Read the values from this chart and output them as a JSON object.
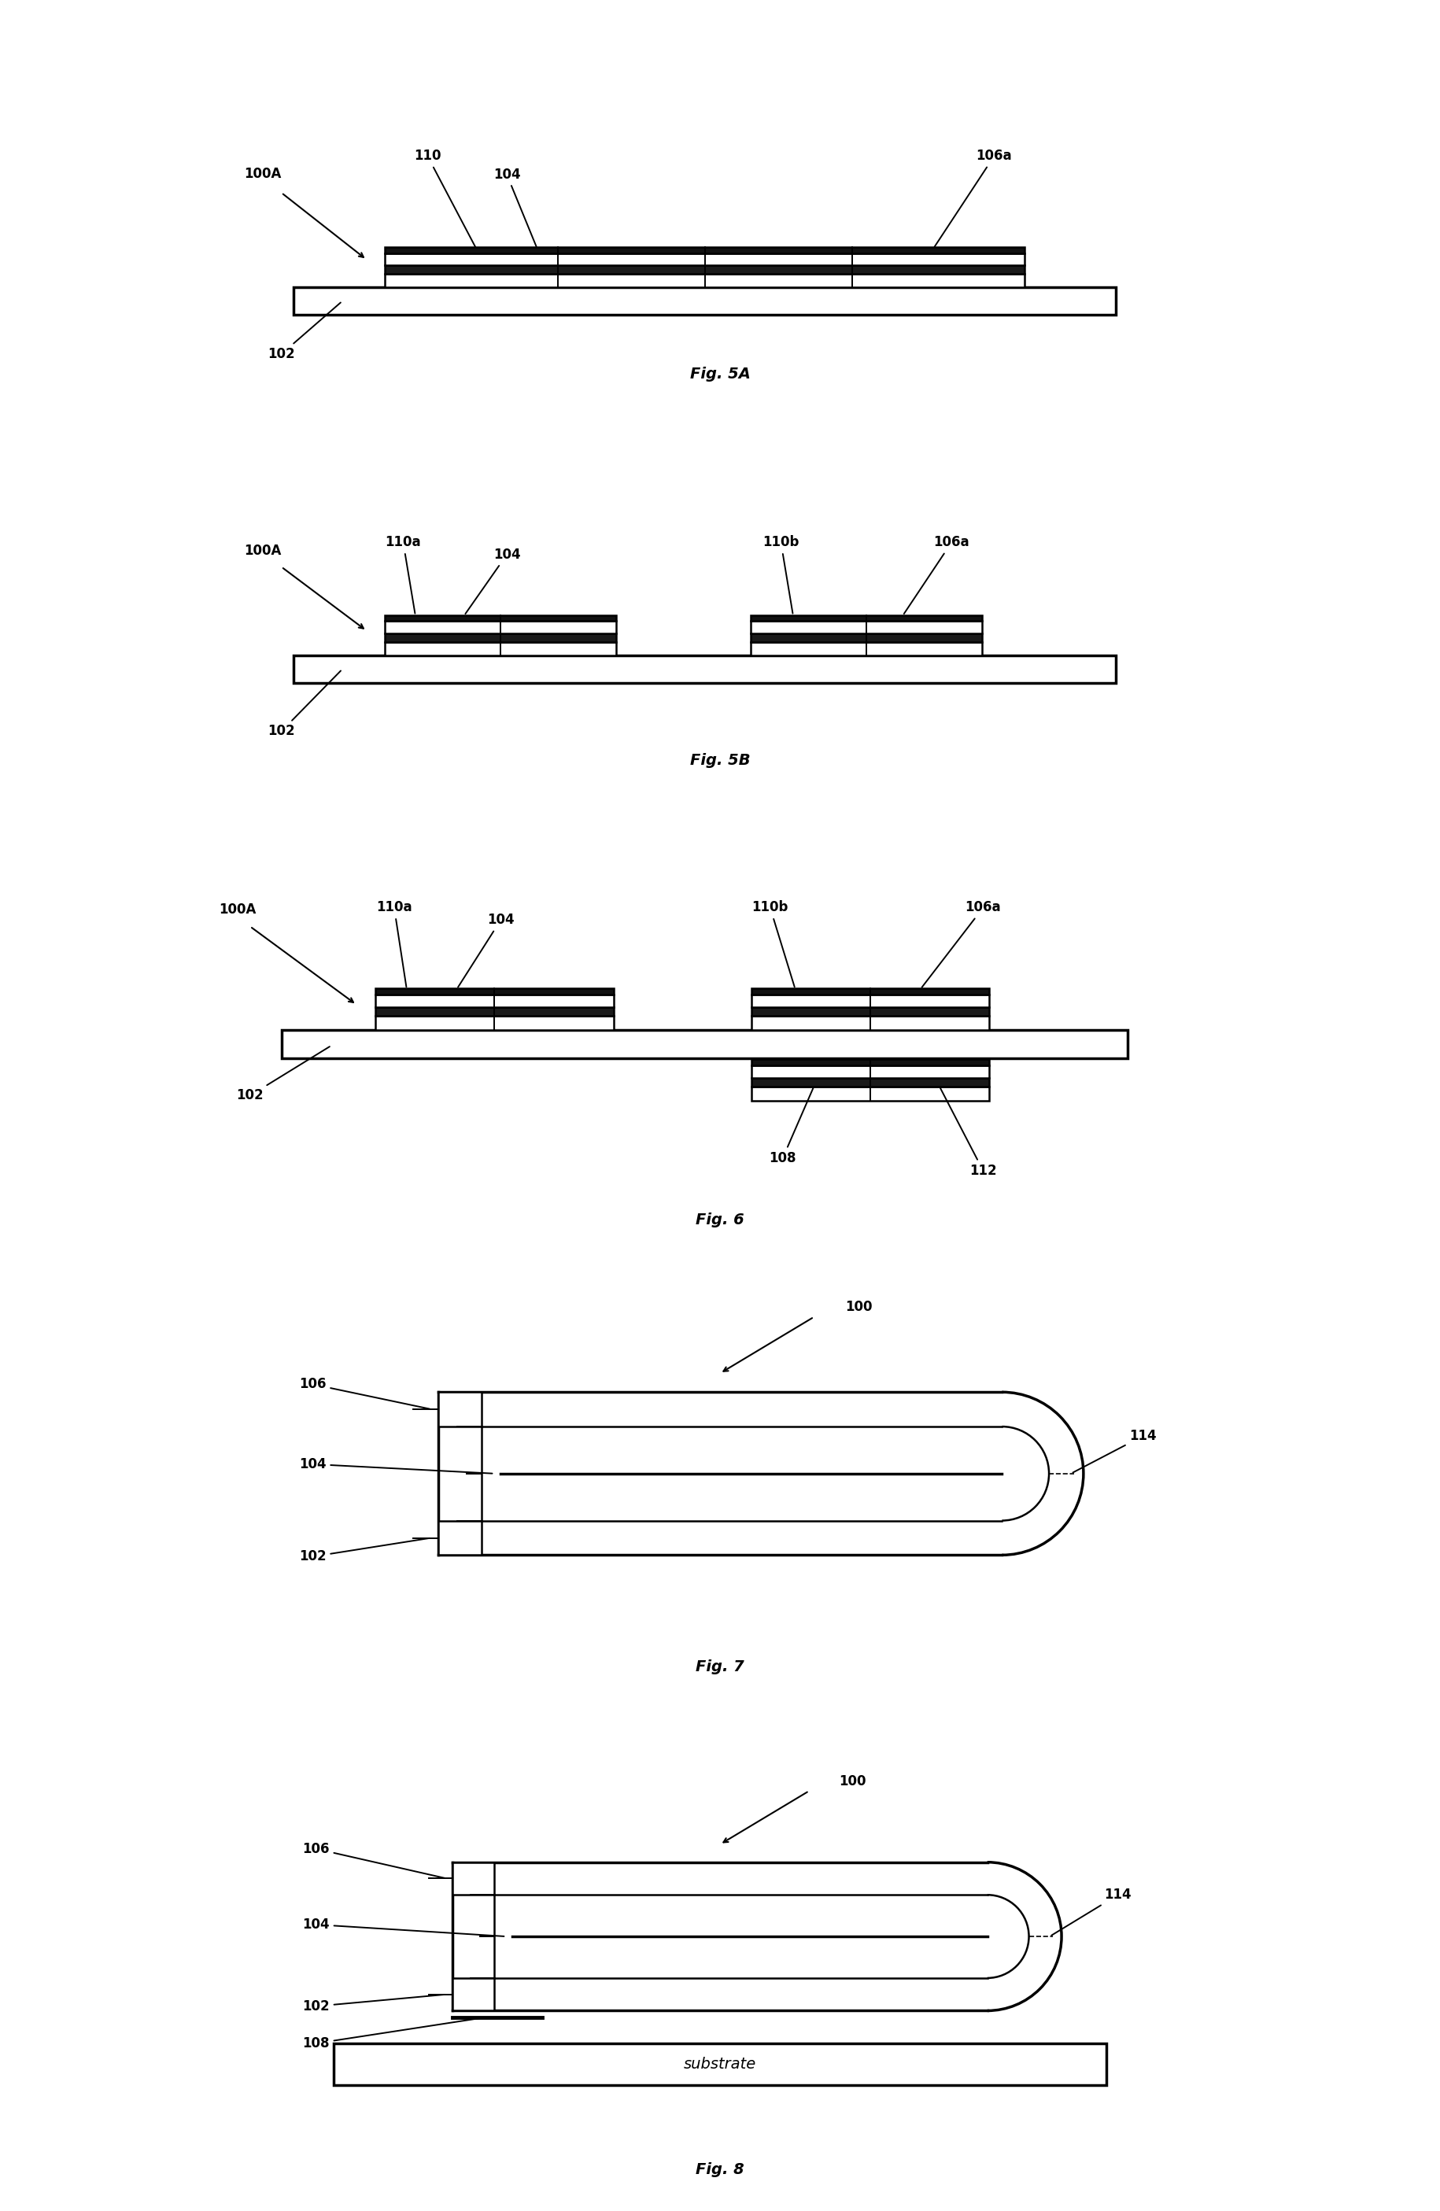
{
  "bg_color": "#ffffff",
  "line_color": "#000000",
  "fig_width": 18.3,
  "fig_height": 28.1,
  "figures": [
    "Fig. 5A",
    "Fig. 5B",
    "Fig. 6",
    "Fig. 7",
    "Fig. 8"
  ]
}
